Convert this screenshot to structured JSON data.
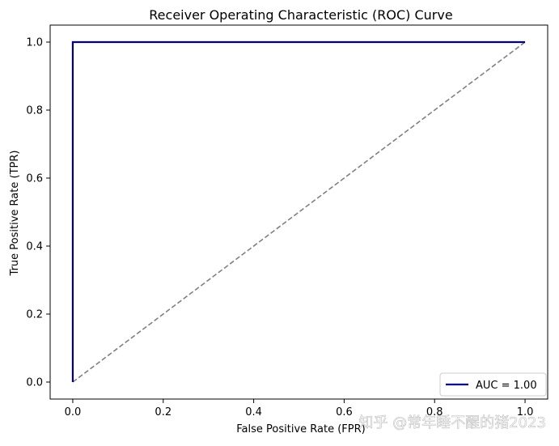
{
  "chart_data": {
    "type": "line",
    "title": "Receiver Operating Characteristic (ROC) Curve",
    "xlabel": "False Positive Rate (FPR)",
    "ylabel": "True Positive Rate (TPR)",
    "xlim": [
      -0.05,
      1.05
    ],
    "ylim": [
      -0.05,
      1.05
    ],
    "xticks": [
      0.0,
      0.2,
      0.4,
      0.6,
      0.8,
      1.0
    ],
    "xtick_labels": [
      "0.0",
      "0.2",
      "0.4",
      "0.6",
      "0.8",
      "1.0"
    ],
    "yticks": [
      0.0,
      0.2,
      0.4,
      0.6,
      0.8,
      1.0
    ],
    "ytick_labels": [
      "0.0",
      "0.2",
      "0.4",
      "0.6",
      "0.8",
      "1.0"
    ],
    "grid": false,
    "legend_position": "lower-right",
    "series": [
      {
        "name": "AUC = 1.00",
        "color": "#000080",
        "style": "solid",
        "x": [
          0.0,
          0.0,
          0.007,
          1.0
        ],
        "y": [
          0.0,
          1.0,
          1.0,
          1.0
        ]
      },
      {
        "color": "#808080",
        "style": "dashed",
        "x": [
          0.0,
          1.0
        ],
        "y": [
          0.0,
          1.0
        ]
      }
    ],
    "watermark": "知乎 @常年睡不醒的猪2023"
  }
}
